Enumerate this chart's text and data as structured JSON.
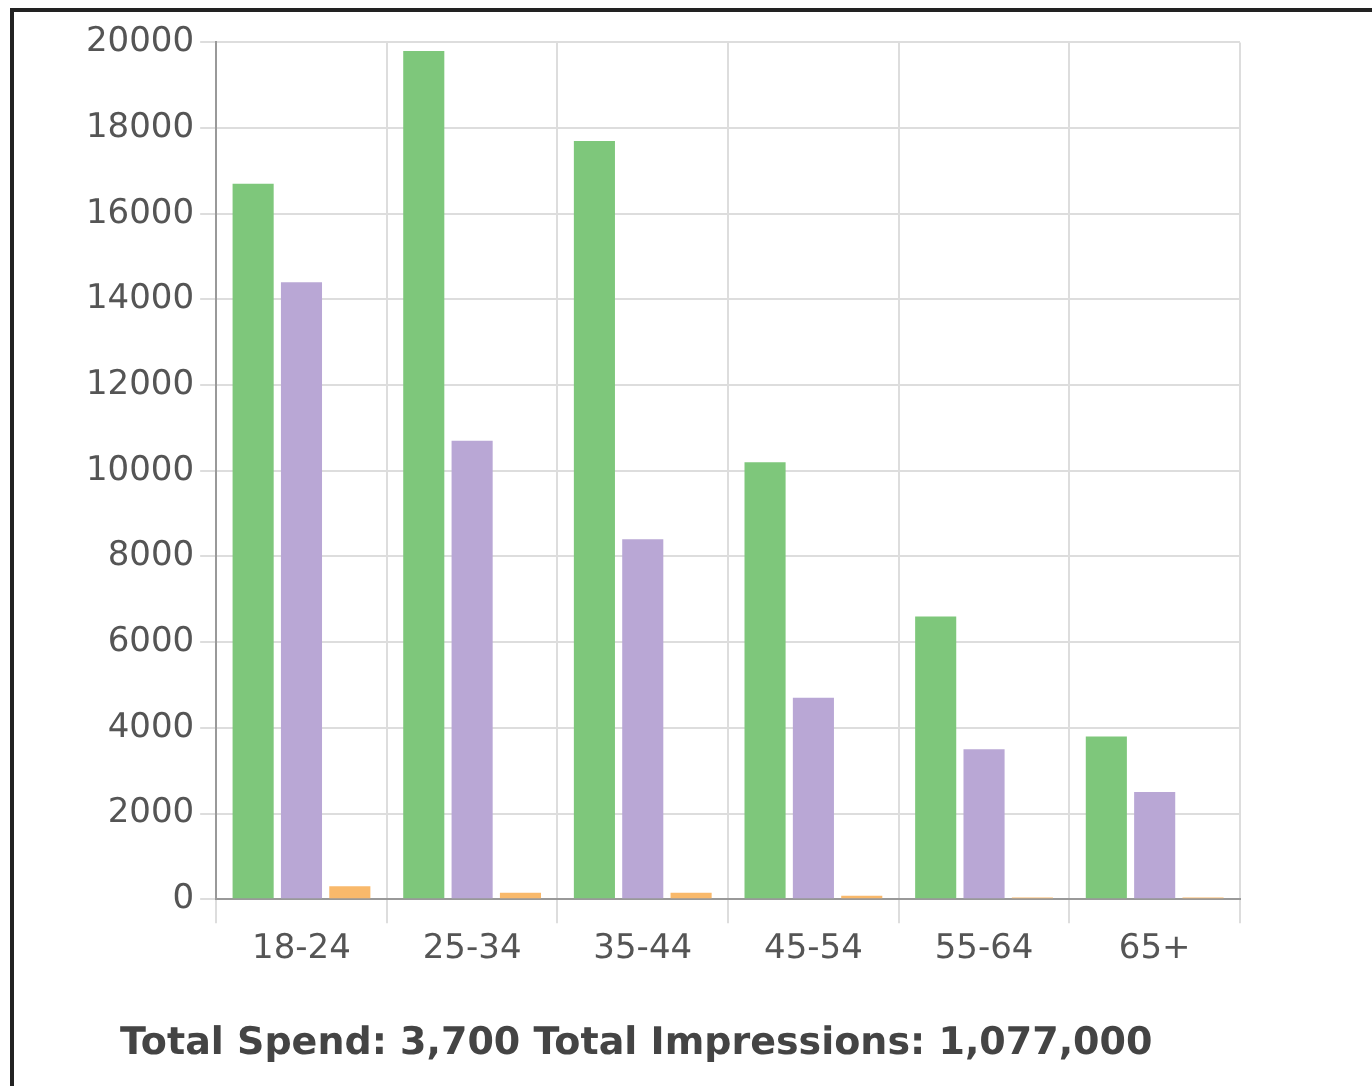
{
  "chart_data": {
    "type": "bar",
    "categories": [
      "18-24",
      "25-34",
      "35-44",
      "45-54",
      "55-64",
      "65+"
    ],
    "series": [
      {
        "color": "#7ec77b",
        "values": [
          16700,
          19800,
          17700,
          10200,
          6600,
          3800
        ]
      },
      {
        "color": "#b9a7d5",
        "values": [
          14400,
          10700,
          8400,
          4700,
          3500,
          2500
        ]
      },
      {
        "color": "#f9b96b",
        "values": [
          300,
          150,
          150,
          80,
          40,
          40
        ]
      }
    ],
    "ylim": [
      0,
      20000
    ],
    "yticks": [
      0,
      2000,
      4000,
      6000,
      8000,
      10000,
      12000,
      14000,
      16000,
      18000,
      20000
    ],
    "grid": true,
    "legend": false,
    "annotations": [
      "Total Spend: 3,700 Total Impressions: 1,077,000"
    ]
  }
}
